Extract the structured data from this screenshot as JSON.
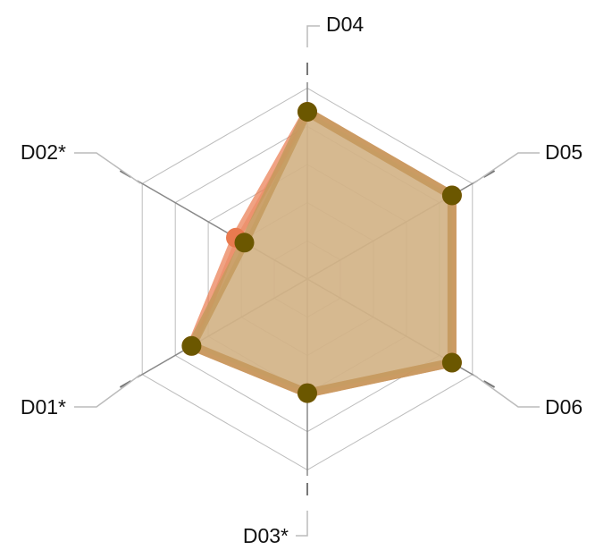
{
  "chart_data": {
    "type": "radar",
    "axes": [
      "D04",
      "D05",
      "D06",
      "D03*",
      "D01*",
      "D02*"
    ],
    "range": [
      0,
      1
    ],
    "grid_levels": 5,
    "series": [
      {
        "values": [
          0.85,
          0.85,
          0.85,
          0.58,
          0.68,
          0.42
        ],
        "color": "#e97a4f",
        "fill": "#f2b7a6"
      },
      {
        "values": [
          0.85,
          0.85,
          0.85,
          0.58,
          0.68,
          0.37
        ],
        "color": "#c49a5e",
        "fill": "#c9b27e",
        "marker_color": "#6b5700"
      }
    ],
    "grid": true,
    "legend": "none"
  }
}
